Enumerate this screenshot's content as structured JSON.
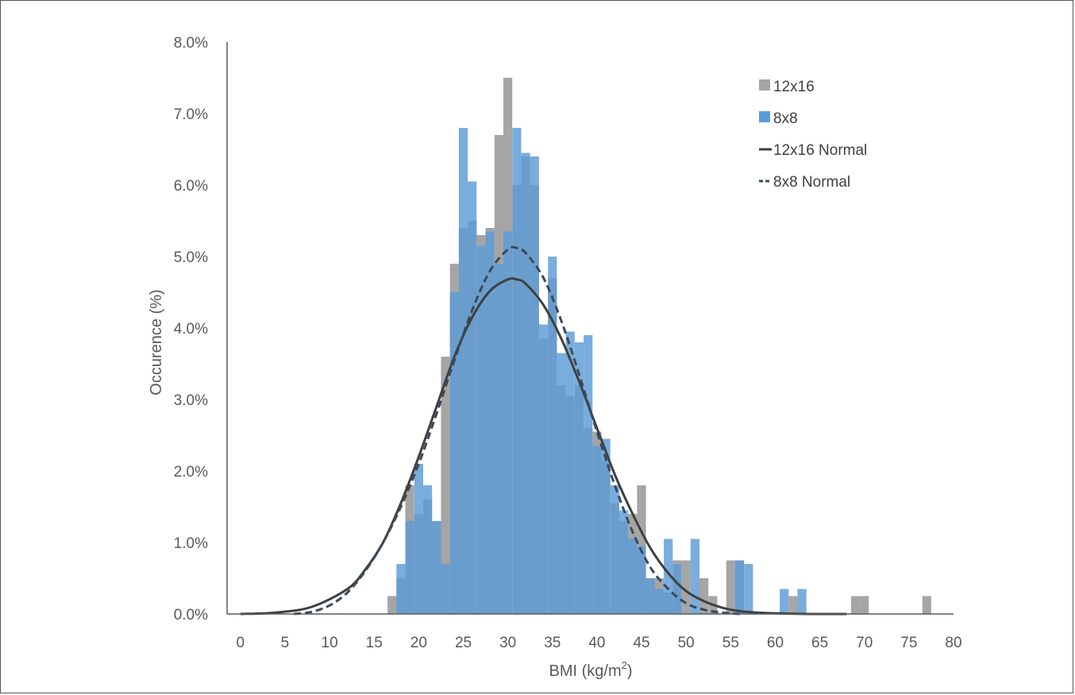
{
  "chart_data": {
    "type": "bar",
    "title": "",
    "xlabel": "BMI (kg/m2)",
    "xlabel_parts": {
      "main": "BMI (kg/m",
      "sup": "2",
      "close": ")"
    },
    "ylabel": "Occurence (%)",
    "xlim": [
      -1.5,
      80
    ],
    "ylim": [
      0,
      8
    ],
    "x_ticks": [
      0,
      5,
      10,
      15,
      20,
      25,
      30,
      35,
      40,
      45,
      50,
      55,
      60,
      65,
      70,
      75,
      80
    ],
    "x_tick_labels": [
      "0",
      "5",
      "10",
      "15",
      "20",
      "25",
      "30",
      "35",
      "40",
      "45",
      "50",
      "55",
      "60",
      "65",
      "70",
      "75",
      "80"
    ],
    "y_ticks": [
      0,
      1,
      2,
      3,
      4,
      5,
      6,
      7,
      8
    ],
    "y_tick_labels": [
      "0.0%",
      "1.0%",
      "2.0%",
      "3.0%",
      "4.0%",
      "5.0%",
      "6.0%",
      "7.0%",
      "8.0%"
    ],
    "grid": false,
    "legend_position": "top-right",
    "bin_width": 1,
    "series": [
      {
        "name": "12x16",
        "kind": "histogram",
        "color": "#a5a5a5",
        "x": [
          17,
          18,
          19,
          20,
          21,
          22,
          23,
          24,
          25,
          26,
          27,
          28,
          29,
          30,
          31,
          32,
          33,
          34,
          35,
          36,
          37,
          38,
          39,
          40,
          41,
          42,
          43,
          44,
          45,
          46,
          47,
          48,
          49,
          50,
          52,
          53,
          55,
          56,
          62,
          69,
          70,
          77
        ],
        "values": [
          0.25,
          0.5,
          1.8,
          1.4,
          1.6,
          1.3,
          3.6,
          4.9,
          5.4,
          5.5,
          5.3,
          5.4,
          6.7,
          7.5,
          6.0,
          6.4,
          6.0,
          3.85,
          4.7,
          3.2,
          3.05,
          3.2,
          2.6,
          2.55,
          2.15,
          1.55,
          1.3,
          1.4,
          1.8,
          0.5,
          0.5,
          0.3,
          0.75,
          0.75,
          0.5,
          0.25,
          0.75,
          0.75,
          0.25,
          0.25,
          0.25,
          0.25
        ]
      },
      {
        "name": "8x8",
        "kind": "histogram",
        "color": "#5b9bd5",
        "x": [
          18,
          19,
          20,
          21,
          22,
          23,
          24,
          25,
          26,
          27,
          28,
          29,
          30,
          31,
          32,
          33,
          34,
          35,
          36,
          37,
          38,
          39,
          40,
          41,
          42,
          43,
          44,
          45,
          46,
          47,
          48,
          49,
          51,
          56,
          57,
          61,
          63
        ],
        "values": [
          0.7,
          1.3,
          2.1,
          1.8,
          1.3,
          0.7,
          4.5,
          6.8,
          6.05,
          5.15,
          5.35,
          4.9,
          5.35,
          6.8,
          6.45,
          6.4,
          4.05,
          5.0,
          3.65,
          3.95,
          3.8,
          3.9,
          2.35,
          2.45,
          1.8,
          1.45,
          1.05,
          0.95,
          0.5,
          0.35,
          1.05,
          0.7,
          1.05,
          0.75,
          0.7,
          0.35,
          0.35
        ]
      },
      {
        "name": "12x16 Normal",
        "kind": "line",
        "style": "solid",
        "color": "#404040",
        "x": [
          0,
          4,
          8,
          12,
          14,
          16,
          18,
          20,
          22,
          24,
          26,
          28,
          30,
          31,
          32,
          34,
          36,
          38,
          40,
          42,
          44,
          46,
          48,
          50,
          52,
          54,
          56,
          58,
          60,
          64,
          68
        ],
        "values": [
          0.0,
          0.02,
          0.1,
          0.35,
          0.62,
          1.0,
          1.55,
          2.2,
          2.9,
          3.6,
          4.15,
          4.52,
          4.68,
          4.68,
          4.62,
          4.32,
          3.85,
          3.25,
          2.6,
          1.95,
          1.4,
          0.92,
          0.57,
          0.32,
          0.18,
          0.09,
          0.04,
          0.02,
          0.01,
          0.0,
          0.0
        ]
      },
      {
        "name": "8x8 Normal",
        "kind": "line",
        "style": "dashed",
        "color": "#3a4a5a",
        "x": [
          6,
          8,
          10,
          12,
          14,
          16,
          18,
          20,
          22,
          24,
          26,
          28,
          30,
          31,
          32,
          34,
          36,
          38,
          40,
          42,
          44,
          46,
          48,
          50,
          52,
          54,
          56
        ],
        "values": [
          0.0,
          0.03,
          0.12,
          0.3,
          0.6,
          1.0,
          1.5,
          2.1,
          2.8,
          3.55,
          4.25,
          4.8,
          5.1,
          5.12,
          5.05,
          4.7,
          4.1,
          3.35,
          2.55,
          1.8,
          1.15,
          0.65,
          0.35,
          0.15,
          0.06,
          0.02,
          0.0
        ]
      }
    ]
  }
}
